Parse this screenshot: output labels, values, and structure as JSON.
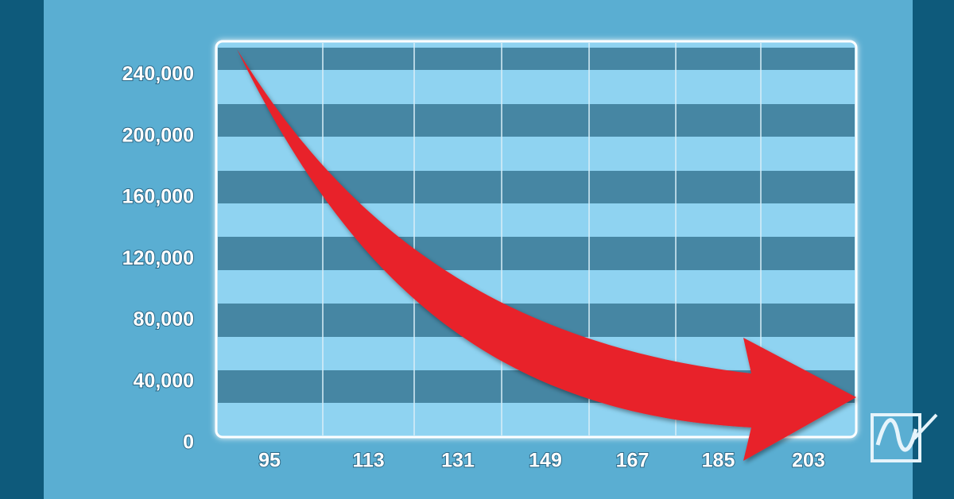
{
  "chart_data": {
    "type": "line",
    "categories": [
      "95",
      "113",
      "131",
      "149",
      "167",
      "185",
      "203"
    ],
    "ylim": [
      0,
      260000
    ],
    "yticks": [
      {
        "value": 0,
        "label": "0"
      },
      {
        "value": 40000,
        "label": "40,000"
      },
      {
        "value": 80000,
        "label": "80,000"
      },
      {
        "value": 120000,
        "label": "120,000"
      },
      {
        "value": 160000,
        "label": "160,000"
      },
      {
        "value": 200000,
        "label": "200,000"
      },
      {
        "value": 240000,
        "label": "240,000"
      }
    ]
  }
}
